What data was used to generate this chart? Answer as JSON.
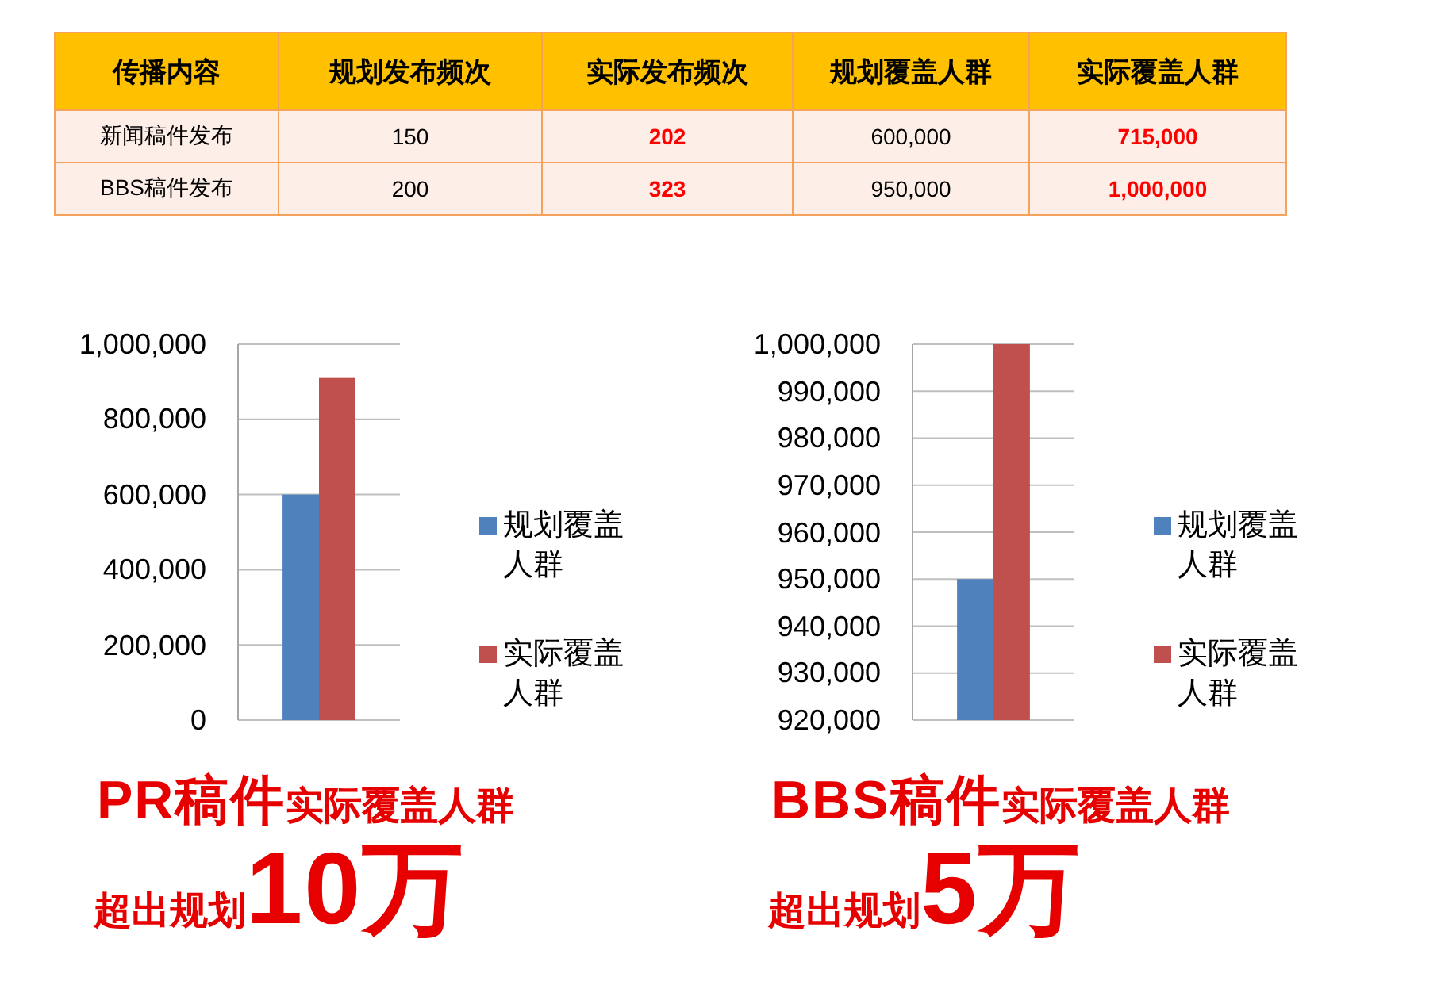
{
  "chart_data": [
    {
      "type": "heatmap",
      "ylabel": "传播内容",
      "categories": [
        "规划发布频次",
        "实际发布频次",
        "规划覆盖人群",
        "实际覆盖人群"
      ],
      "y_categories": [
        "新闻稿件发布",
        "BBS稿件发布"
      ],
      "cells": [
        [
          150,
          202,
          600000,
          715000
        ],
        [
          200,
          323,
          950000,
          1000000
        ]
      ],
      "cell_labels": [
        [
          "150",
          "202",
          "600,000",
          "715,000"
        ],
        [
          "200",
          "323",
          "950,000",
          "1,000,000"
        ]
      ]
    },
    {
      "type": "bar",
      "categories": [
        null
      ],
      "series": [
        {
          "name": "规划覆盖人群",
          "color": "#4f81bd",
          "values": [
            600000
          ]
        },
        {
          "name": "实际覆盖人群",
          "color": "#c0504d",
          "values": [
            910000
          ]
        }
      ],
      "ylim": [
        0,
        1000000
      ],
      "yticks": [
        0,
        {
          "value": 200000,
          "label": "200,000"
        },
        {
          "value": 400000,
          "label": "400,000"
        },
        {
          "value": 600000,
          "label": "600,000"
        },
        {
          "value": 800000,
          "label": "800,000"
        },
        {
          "value": 1000000,
          "label": "1,000,000"
        }
      ],
      "grid": "y",
      "legend": "right",
      "annotations": [
        "PR稿件",
        "实际覆盖人群",
        "超出规划",
        "10万"
      ]
    },
    {
      "type": "bar",
      "categories": [
        null
      ],
      "series": [
        {
          "name": "规划覆盖人群",
          "color": "#4f81bd",
          "values": [
            950000
          ]
        },
        {
          "name": "实际覆盖人群",
          "color": "#c0504d",
          "values": [
            1000000
          ]
        }
      ],
      "ylim": [
        920000,
        1000000
      ],
      "yticks": [
        {
          "value": 920000,
          "label": "920,000"
        },
        {
          "value": 930000,
          "label": "930,000"
        },
        {
          "value": 940000,
          "label": "940,000"
        },
        {
          "value": 950000,
          "label": "950,000"
        },
        {
          "value": 960000,
          "label": "960,000"
        },
        {
          "value": 970000,
          "label": "970,000"
        },
        {
          "value": 980000,
          "label": "980,000"
        },
        {
          "value": 990000,
          "label": "990,000"
        },
        {
          "value": 1000000,
          "label": "1,000,000"
        }
      ],
      "grid": "y",
      "legend": "right",
      "annotations": [
        "BBS稿件",
        "实际覆盖人群",
        "超出规划",
        "5万"
      ]
    }
  ]
}
